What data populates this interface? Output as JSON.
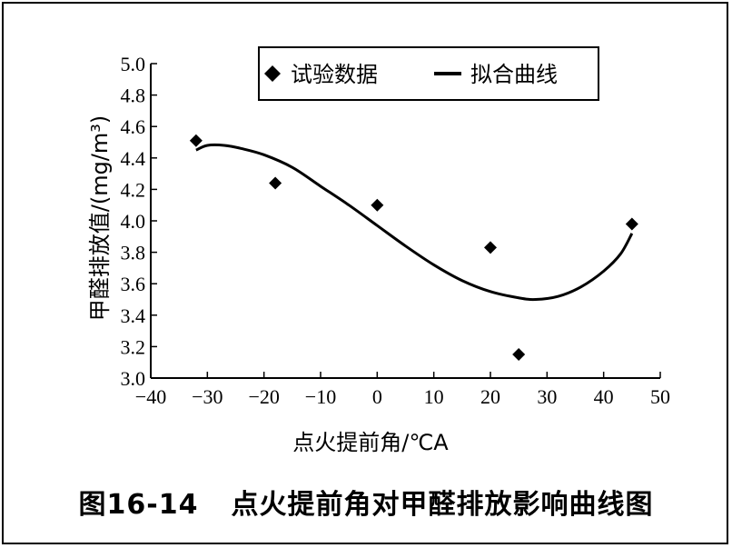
{
  "caption": {
    "figure_number": "图16-14",
    "text": "点火提前角对甲醛排放影响曲线图"
  },
  "chart_data": {
    "type": "scatter",
    "title": "",
    "xlabel": "点火提前角/℃A",
    "ylabel": "甲醛排放值/(mg/m³)",
    "xlim": [
      -40,
      50
    ],
    "ylim": [
      3.0,
      5.0
    ],
    "x_ticks": [
      -40,
      -30,
      -20,
      -10,
      0,
      10,
      20,
      30,
      40,
      50
    ],
    "x_tick_labels": [
      "−40",
      "−30",
      "−20",
      "−10",
      "0",
      "10",
      "20",
      "30",
      "40",
      "50"
    ],
    "y_ticks": [
      3.0,
      3.2,
      3.4,
      3.6,
      3.8,
      4.0,
      4.2,
      4.4,
      4.6,
      4.8,
      5.0
    ],
    "y_tick_labels": [
      "3.0",
      "3.2",
      "3.4",
      "3.6",
      "3.8",
      "4.0",
      "4.2",
      "4.4",
      "4.6",
      "4.8",
      "5.0"
    ],
    "grid": false,
    "legend_position": "top-right",
    "series": [
      {
        "name": "试验数据",
        "kind": "markers",
        "marker": "diamond",
        "color": "#000000",
        "points": [
          {
            "x": -32,
            "y": 4.51
          },
          {
            "x": -18,
            "y": 4.24
          },
          {
            "x": 0,
            "y": 4.1
          },
          {
            "x": 20,
            "y": 3.83
          },
          {
            "x": 25,
            "y": 3.15
          },
          {
            "x": 45,
            "y": 3.98
          }
        ]
      },
      {
        "name": "拟合曲线",
        "kind": "line",
        "color": "#000000",
        "points": [
          {
            "x": -32,
            "y": 4.45
          },
          {
            "x": -30,
            "y": 4.48
          },
          {
            "x": -27,
            "y": 4.48
          },
          {
            "x": -24,
            "y": 4.46
          },
          {
            "x": -20,
            "y": 4.42
          },
          {
            "x": -15,
            "y": 4.34
          },
          {
            "x": -10,
            "y": 4.22
          },
          {
            "x": -5,
            "y": 4.1
          },
          {
            "x": 0,
            "y": 3.97
          },
          {
            "x": 5,
            "y": 3.84
          },
          {
            "x": 10,
            "y": 3.72
          },
          {
            "x": 15,
            "y": 3.62
          },
          {
            "x": 20,
            "y": 3.55
          },
          {
            "x": 25,
            "y": 3.51
          },
          {
            "x": 28,
            "y": 3.5
          },
          {
            "x": 32,
            "y": 3.52
          },
          {
            "x": 36,
            "y": 3.58
          },
          {
            "x": 40,
            "y": 3.68
          },
          {
            "x": 43,
            "y": 3.79
          },
          {
            "x": 45,
            "y": 3.92
          }
        ]
      }
    ]
  }
}
